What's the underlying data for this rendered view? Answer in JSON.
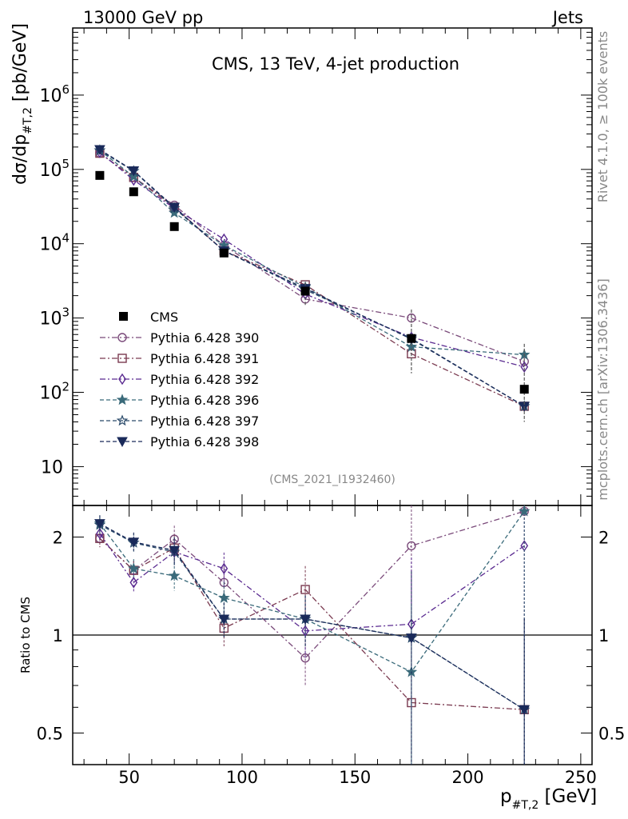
{
  "header": {
    "left": "13000 GeV pp",
    "right": "Jets"
  },
  "side_text": {
    "top": "Rivet 4.1.0, ≥ 100k events",
    "bottom": "mcplots.cern.ch [arXiv:1306.3436]"
  },
  "chart_data": [
    {
      "type": "scatter",
      "panel": "main",
      "title": "CMS, 13 TeV, 4-jet production",
      "analysis_id": "(CMS_2021_I1932460)",
      "ylabel_main": "dσ/dp",
      "ylabel_sub": "#T,2",
      "ylabel_unit": " [pb/GeV]",
      "yscale": "log",
      "ylim": [
        3,
        8000000
      ],
      "xlim": [
        25,
        255
      ],
      "x": [
        37,
        52,
        70,
        92,
        128,
        175,
        225
      ],
      "yticks": [
        {
          "v": 10,
          "t": "10",
          "sup": ""
        },
        {
          "v": 100,
          "t": "10",
          "sup": "2"
        },
        {
          "v": 1000,
          "t": "10",
          "sup": "3"
        },
        {
          "v": 10000,
          "t": "10",
          "sup": "4"
        },
        {
          "v": 100000,
          "t": "10",
          "sup": "5"
        },
        {
          "v": 1000000,
          "t": "10",
          "sup": "6"
        }
      ],
      "data": {
        "name": "CMS",
        "values": [
          83000,
          50000,
          17000,
          7500,
          2300,
          530,
          110
        ]
      },
      "series": [
        {
          "name": "Pythia 6.428 390",
          "color": "#7a4a7a",
          "marker": "circle",
          "dash": "7,3,2,3",
          "values": [
            165000,
            78000,
            33000,
            9500,
            1800,
            1000,
            260
          ]
        },
        {
          "name": "Pythia 6.428 391",
          "color": "#7a3a50",
          "marker": "square",
          "dash": "7,3,2,3",
          "values": [
            165000,
            78000,
            31000,
            8000,
            2800,
            330,
            65
          ]
        },
        {
          "name": "Pythia 6.428 392",
          "color": "#5a2a90",
          "marker": "diamond",
          "dash": "7,3,2,3",
          "values": [
            170000,
            72000,
            30000,
            11500,
            2100,
            550,
            220
          ]
        },
        {
          "name": "Pythia 6.428 396",
          "color": "#3a6a7a",
          "marker": "star",
          "dash": "5,3",
          "values": [
            180000,
            80000,
            26000,
            9500,
            2600,
            410,
            320
          ]
        },
        {
          "name": "Pythia 6.428 397",
          "color": "#2a4a6a",
          "marker": "star-open",
          "dash": "5,3",
          "values": [
            180000,
            95000,
            30000,
            8000,
            2400,
            530,
            65
          ]
        },
        {
          "name": "Pythia 6.428 398",
          "color": "#1a2a5a",
          "marker": "tri-down",
          "dash": "5,3",
          "values": [
            185000,
            96000,
            31000,
            8000,
            2500,
            520,
            65
          ]
        }
      ]
    },
    {
      "type": "scatter",
      "panel": "ratio",
      "ylabel": "Ratio to CMS",
      "yscale": "log",
      "ylim": [
        0.4,
        2.5
      ],
      "xlim": [
        25,
        255
      ],
      "x": [
        37,
        52,
        70,
        92,
        128,
        175,
        225
      ],
      "xticks": [
        "50",
        "100",
        "150",
        "200",
        "250"
      ],
      "xlabel_main": "p",
      "xlabel_sub": "#T,2",
      "xlabel_unit": " [GeV]",
      "yticks": [
        "0.5",
        "1",
        "2"
      ],
      "series": [
        {
          "name": "Pythia 6.428 390",
          "values": [
            1.98,
            1.58,
            1.97,
            1.45,
            0.85,
            1.88,
            2.4
          ]
        },
        {
          "name": "Pythia 6.428 391",
          "values": [
            1.98,
            1.58,
            1.85,
            1.05,
            1.38,
            0.62,
            0.59
          ]
        },
        {
          "name": "Pythia 6.428 392",
          "values": [
            2.05,
            1.45,
            1.8,
            1.6,
            1.03,
            1.08,
            1.88
          ]
        },
        {
          "name": "Pythia 6.428 396",
          "values": [
            2.2,
            1.6,
            1.52,
            1.3,
            1.12,
            0.77,
            2.4
          ]
        },
        {
          "name": "Pythia 6.428 397",
          "values": [
            2.18,
            1.92,
            1.8,
            1.12,
            1.12,
            0.98,
            0.59
          ]
        },
        {
          "name": "Pythia 6.428 398",
          "values": [
            2.2,
            1.93,
            1.82,
            1.12,
            1.12,
            0.98,
            0.59
          ]
        }
      ]
    }
  ]
}
